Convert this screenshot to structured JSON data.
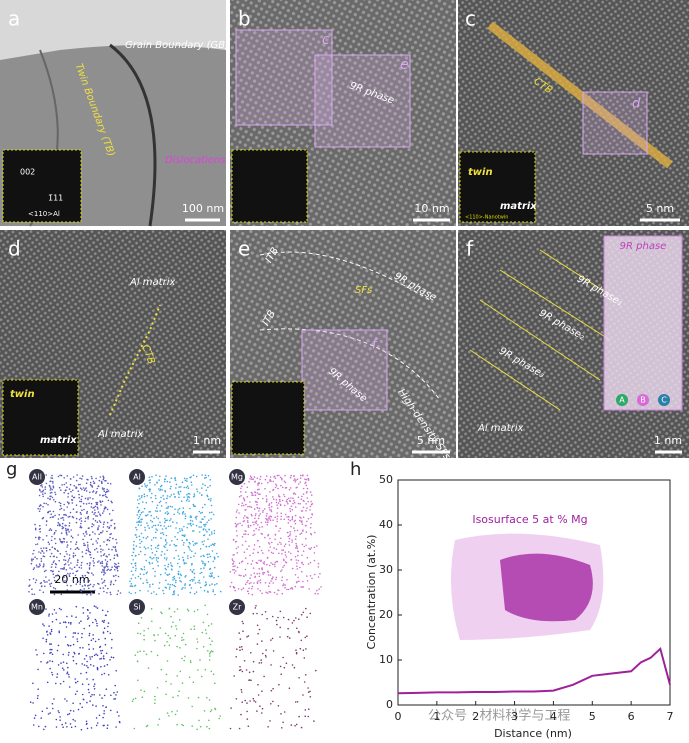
{
  "panels": [
    {
      "label": "a",
      "texts": [
        "Grain Boundary (GB)",
        "Twin Boundary (TB)",
        "Dislocations",
        "002",
        "1̄11",
        "<110>Al"
      ],
      "scale_bar": "100 nm"
    },
    {
      "label": "b",
      "texts": [
        "c",
        "e",
        "9R phase"
      ],
      "scale_bar": "10 nm"
    },
    {
      "label": "c",
      "texts": [
        "CTB",
        "d",
        "twin",
        "matrix",
        "<110>-Nanotwin"
      ],
      "scale_bar": "5 nm"
    },
    {
      "label": "d",
      "texts": [
        "Al matrix",
        "CTB",
        "twin",
        "matrix",
        "Al matrix"
      ],
      "scale_bar": "1 nm"
    },
    {
      "label": "e",
      "texts": [
        "ITB",
        "SFs",
        "9R phase",
        "ITB",
        "9R phase",
        "f",
        "High-density SFs"
      ],
      "scale_bar": "5 nm"
    },
    {
      "label": "f",
      "texts": [
        "9R phase",
        "9R phase₁",
        "9R phase₂",
        "9R phase₃",
        "A",
        "B",
        "C",
        "Al matrix"
      ],
      "scale_bar": "1 nm"
    }
  ],
  "apt": {
    "label": "g",
    "elements": [
      "All",
      "Al",
      "Mg",
      "Mn",
      "Si",
      "Zr"
    ],
    "scale_bar": "20 nm"
  },
  "chart_label": "h",
  "watermark": "公众号 · 材料科学与工程",
  "chart_data": {
    "type": "line",
    "annotation": "Isosurface 5 at % Mg",
    "x_label": "Distance (nm)",
    "y_label": "Concentration (at.%)",
    "x": [
      0,
      0.5,
      1,
      1.5,
      2,
      2.5,
      3,
      3.5,
      4,
      4.5,
      5,
      5.5,
      6,
      6.25,
      6.5,
      6.75,
      7
    ],
    "values": [
      2.6,
      2.7,
      2.8,
      2.8,
      2.9,
      2.9,
      3.0,
      3.0,
      3.2,
      4.5,
      6.5,
      7.0,
      7.5,
      9.5,
      10.5,
      12.5,
      4.5
    ],
    "color": "#a0209a",
    "xlim": [
      0,
      7
    ],
    "ylim": [
      0,
      50
    ],
    "xticks": [
      0,
      1,
      2,
      3,
      4,
      5,
      6,
      7
    ],
    "yticks": [
      0,
      10,
      20,
      30,
      40,
      50
    ]
  }
}
